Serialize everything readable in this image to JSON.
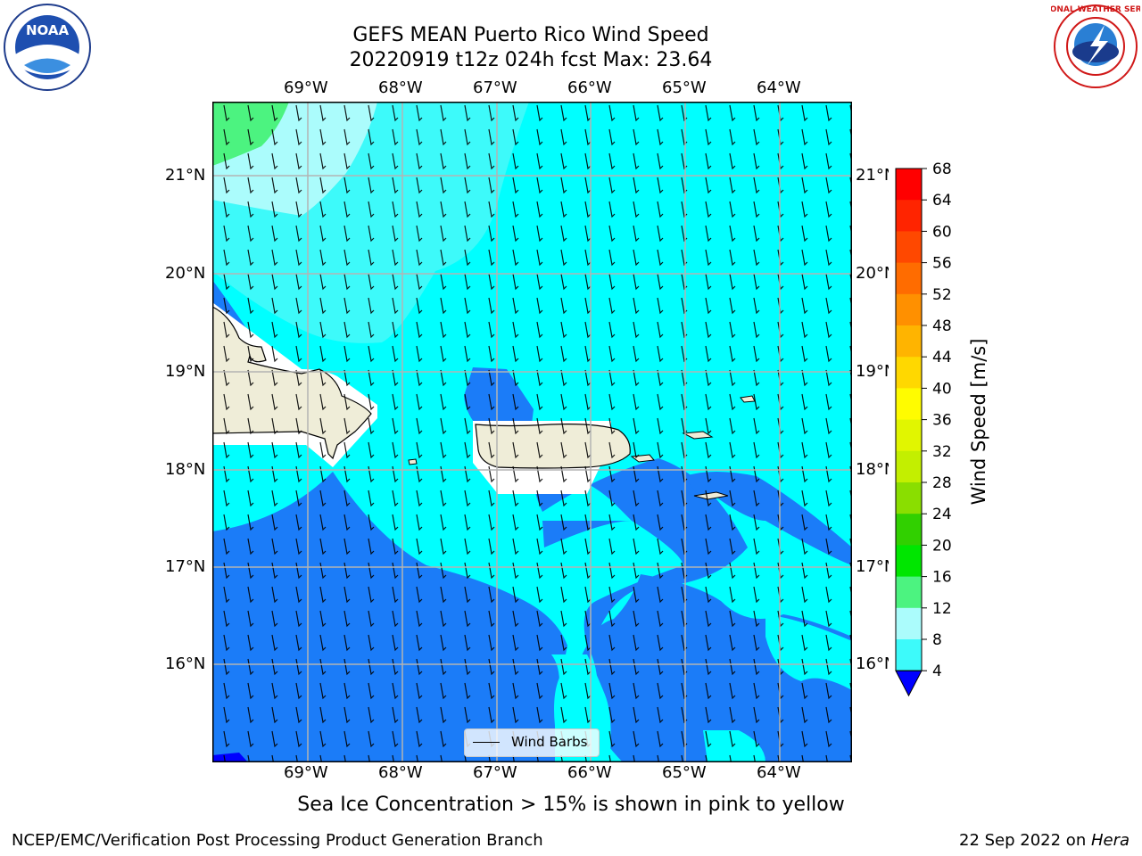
{
  "title": {
    "line1": "GEFS MEAN Puerto Rico Wind Speed",
    "line2": "20220919 t12z 024h fcst   Max: 23.64"
  },
  "map": {
    "lon_labels": [
      "69°W",
      "68°W",
      "67°W",
      "66°W",
      "65°W",
      "64°W"
    ],
    "lat_labels": [
      "21°N",
      "20°N",
      "19°N",
      "18°N",
      "17°N",
      "16°N"
    ],
    "legend_label": "Wind Barbs",
    "colors": {
      "land": "#efedd8",
      "coast": "#000000",
      "grid": "#b3b3b3"
    }
  },
  "colorbar": {
    "label": "Wind Speed [m/s]",
    "ticks": [
      "68",
      "64",
      "60",
      "56",
      "52",
      "48",
      "44",
      "40",
      "36",
      "32",
      "28",
      "24",
      "20",
      "16",
      "12",
      "8",
      "4"
    ],
    "colors": [
      "#ff0000",
      "#ff2400",
      "#ff4800",
      "#ff6c00",
      "#ff9000",
      "#ffb400",
      "#ffd800",
      "#fffc00",
      "#e1f600",
      "#c3ef00",
      "#8ade00",
      "#31d000",
      "#00e600",
      "#4cf380",
      "#abfcfc",
      "#3dfafa",
      "#00ffff",
      "#1b7cf8"
    ],
    "under_color": "#0000ff"
  },
  "caption": "Sea Ice Concentration > 15% is shown in pink to yellow",
  "footer": {
    "left": "NCEP/EMC/Verification Post Processing Product Generation Branch",
    "right_prefix": "22 Sep 2022 on ",
    "right_host": "Hera"
  },
  "logos": {
    "noaa_text": "NOAA",
    "nws_text": "NATIONAL WEATHER SERVICE"
  }
}
